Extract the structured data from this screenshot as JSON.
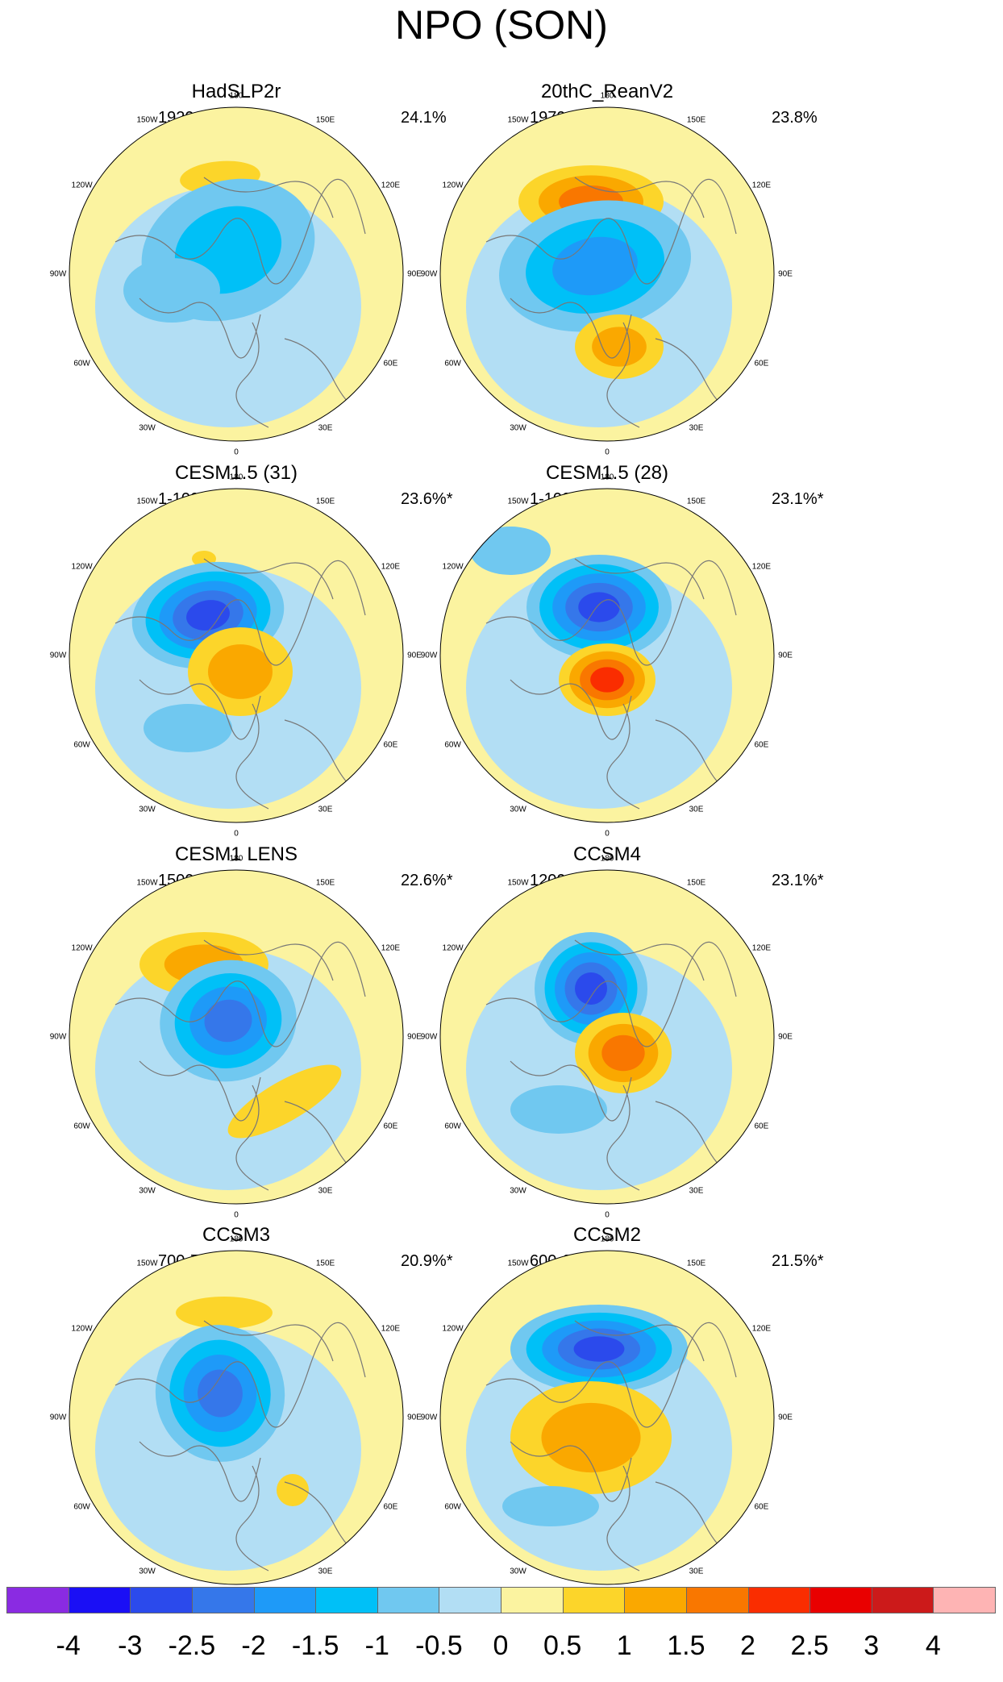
{
  "title": "NPO (SON)",
  "panels": [
    {
      "name": "HadSLP2r",
      "period": "1920-2014",
      "percent": "24.1%"
    },
    {
      "name": "20thC_ReanV2",
      "period": "1979-2012",
      "percent": "23.8%"
    },
    {
      "name": "CESM1.5 (31)",
      "period": "1-100",
      "percent": "23.6%*"
    },
    {
      "name": "CESM1.5 (28)",
      "period": "1-100",
      "percent": "23.1%*"
    },
    {
      "name": "CESM1 LENS",
      "period": "1500-1599",
      "percent": "22.6%*"
    },
    {
      "name": "CCSM4",
      "period": "1200-1299",
      "percent": "23.1%*"
    },
    {
      "name": "CCSM3",
      "period": "700-799",
      "percent": "20.9%*"
    },
    {
      "name": "CCSM2",
      "period": "600-699",
      "percent": "21.5%*"
    }
  ],
  "longitude_labels": [
    "180",
    "150E",
    "120E",
    "90E",
    "60E",
    "30E",
    "0",
    "30W",
    "60W",
    "90W",
    "120W",
    "150W"
  ],
  "colorbar": {
    "labels": [
      "-4",
      "-3",
      "-2.5",
      "-2",
      "-1.5",
      "-1",
      "-0.5",
      "0",
      "0.5",
      "1",
      "1.5",
      "2",
      "2.5",
      "3",
      "4"
    ],
    "colors": [
      "#8a2be2",
      "#1a0ff5",
      "#2b4aec",
      "#3577ea",
      "#1e9af8",
      "#00c0f7",
      "#70c8f0",
      "#b2def4",
      "#fbf3a0",
      "#fcd52a",
      "#faa800",
      "#f97700",
      "#fa2d00",
      "#e90000",
      "#cc1a1a",
      "#feb4b4"
    ]
  }
}
